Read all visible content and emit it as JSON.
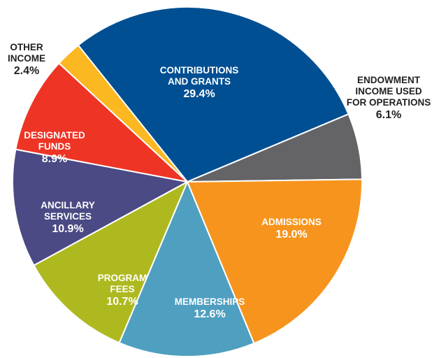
{
  "chart_data": {
    "type": "pie",
    "slices": [
      {
        "label_lines": [
          "CONTRIBUTIONS",
          "AND GRANTS"
        ],
        "value": 29.4,
        "value_label": "29.4%",
        "color": "#004f92"
      },
      {
        "label_lines": [
          "ENDOWMENT",
          "INCOME USED",
          "FOR OPERATIONS"
        ],
        "value": 6.1,
        "value_label": "6.1%",
        "color": "#646467"
      },
      {
        "label_lines": [
          "ADMISSIONS"
        ],
        "value": 19.0,
        "value_label": "19.0%",
        "color": "#f7941e"
      },
      {
        "label_lines": [
          "MEMBERSHIPS"
        ],
        "value": 12.6,
        "value_label": "12.6%",
        "color": "#4f9fc0"
      },
      {
        "label_lines": [
          "PROGRAM",
          "FEES"
        ],
        "value": 10.7,
        "value_label": "10.7%",
        "color": "#aeb920"
      },
      {
        "label_lines": [
          "ANCILLARY",
          "SERVICES"
        ],
        "value": 10.9,
        "value_label": "10.9%",
        "color": "#4b4a84"
      },
      {
        "label_lines": [
          "DESIGNATED",
          "FUNDS"
        ],
        "value": 8.9,
        "value_label": "8.9%",
        "color": "#ee3424"
      },
      {
        "label_lines": [
          "OTHER",
          "INCOME"
        ],
        "value": 2.4,
        "value_label": "2.4%",
        "color": "#fbb821"
      }
    ],
    "title": "",
    "legend": "none"
  }
}
